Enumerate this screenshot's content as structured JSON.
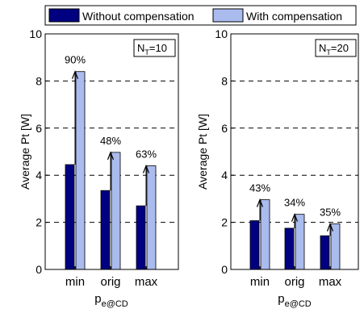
{
  "legend": {
    "items": [
      {
        "label": "Without compensation",
        "color": "#000080"
      },
      {
        "label": "With compensation",
        "color": "#aabbee"
      }
    ]
  },
  "chart_data": [
    {
      "type": "bar",
      "annotation_main": "N",
      "annotation_sub": "T",
      "annotation_value": "=10",
      "ylabel": "Average Pt [W]",
      "xlabel_main": "p",
      "xlabel_sub": "e@CD",
      "categories": [
        "min",
        "orig",
        "max"
      ],
      "ylim": [
        0,
        10
      ],
      "yticks": [
        0,
        2,
        4,
        6,
        8,
        10
      ],
      "grid": "dashed horizontal",
      "series": [
        {
          "name": "Without compensation",
          "values": [
            4.45,
            3.35,
            2.7
          ]
        },
        {
          "name": "With compensation",
          "values": [
            8.4,
            4.97,
            4.4
          ]
        }
      ],
      "increase_labels": [
        "90%",
        "48%",
        "63%"
      ]
    },
    {
      "type": "bar",
      "annotation_main": "N",
      "annotation_sub": "T",
      "annotation_value": "=20",
      "ylabel": "Average Pt [W]",
      "xlabel_main": "p",
      "xlabel_sub": "e@CD",
      "categories": [
        "min",
        "orig",
        "max"
      ],
      "ylim": [
        0,
        10
      ],
      "yticks": [
        0,
        2,
        4,
        6,
        8,
        10
      ],
      "grid": "dashed horizontal",
      "series": [
        {
          "name": "Without compensation",
          "values": [
            2.07,
            1.75,
            1.43
          ]
        },
        {
          "name": "With compensation",
          "values": [
            2.96,
            2.34,
            1.93
          ]
        }
      ],
      "increase_labels": [
        "43%",
        "34%",
        "35%"
      ]
    }
  ]
}
